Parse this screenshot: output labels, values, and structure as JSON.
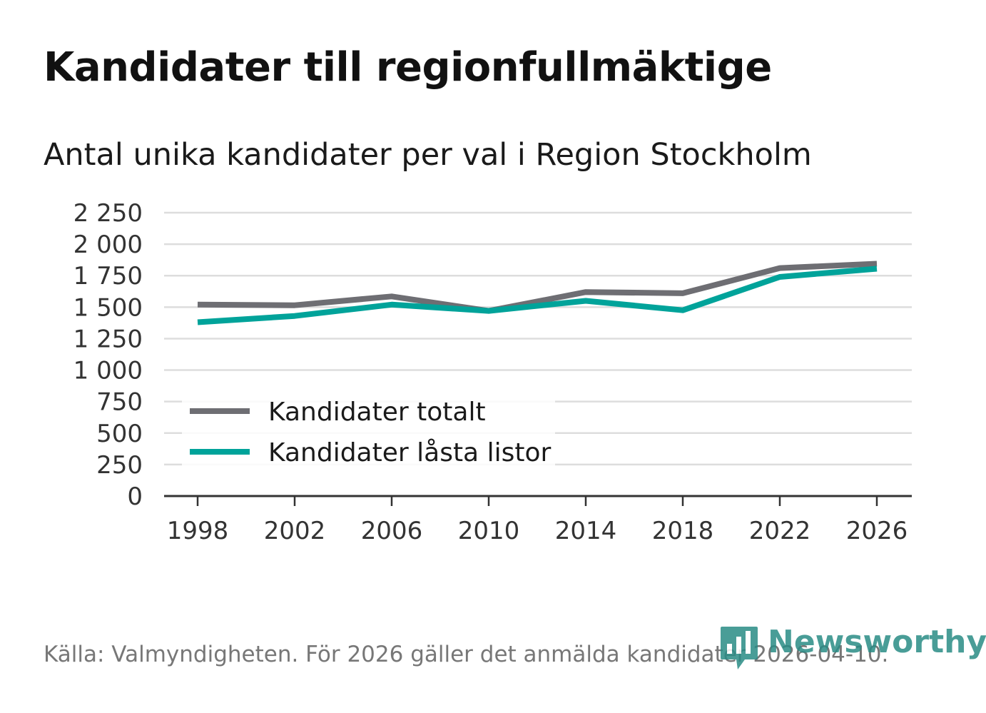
{
  "header": {
    "title": "Kandidater till regionfullmäktige",
    "subtitle": "Antal unika kandidater per val i Region Stockholm"
  },
  "chart_data": {
    "type": "line",
    "title": "Kandidater till regionfullmäktige",
    "subtitle": "Antal unika kandidater per val i Region Stockholm",
    "xlabel": "",
    "ylabel": "",
    "categories": [
      "1998",
      "2002",
      "2006",
      "2010",
      "2014",
      "2018",
      "2022",
      "2026"
    ],
    "x": [
      1998,
      2002,
      2006,
      2010,
      2014,
      2018,
      2022,
      2026
    ],
    "ylim": [
      0,
      2250
    ],
    "yticks": [
      0,
      250,
      500,
      750,
      1000,
      1250,
      1500,
      1750,
      2000,
      2250
    ],
    "ytick_labels": [
      "0",
      "250",
      "500",
      "750",
      "1 000",
      "1 250",
      "1 500",
      "1 750",
      "2 000",
      "2 250"
    ],
    "grid": true,
    "legend_position": "lower-left",
    "series": [
      {
        "name": "Kandidater totalt",
        "color": "#6e6e73",
        "values": [
          1520,
          1515,
          1585,
          1470,
          1620,
          1610,
          1810,
          1845
        ]
      },
      {
        "name": "Kandidater låsta listor",
        "color": "#00a39a",
        "values": [
          1380,
          1430,
          1520,
          1470,
          1550,
          1475,
          1740,
          1805
        ]
      }
    ]
  },
  "footer": {
    "source": "Källa: Valmyndigheten. För 2026 gäller det anmälda kandidater 2026-04-10.",
    "logo_text": "Newsworthy"
  },
  "colors": {
    "brand": "#2a8c86",
    "grid": "#dddddd",
    "axis": "#333333"
  }
}
